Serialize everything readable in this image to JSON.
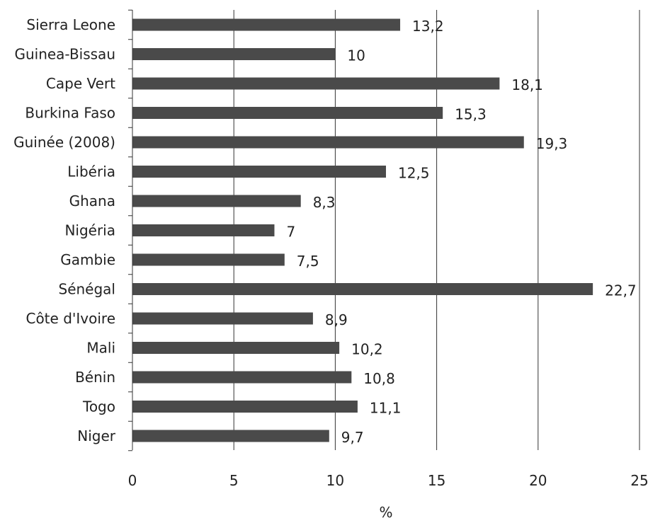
{
  "chart_data": {
    "type": "bar",
    "orientation": "horizontal",
    "categories": [
      "Sierra Leone",
      "Guinea-Bissau",
      "Cape Vert",
      "Burkina Faso",
      "Guinée (2008)",
      "Libéria",
      "Ghana",
      "Nigéria",
      "Gambie",
      "Sénégal",
      "Côte d'Ivoire",
      "Mali",
      "Bénin",
      "Togo",
      "Niger"
    ],
    "values": [
      13.2,
      10,
      18.1,
      15.3,
      19.3,
      12.5,
      8.3,
      7,
      7.5,
      22.7,
      8.9,
      10.2,
      10.8,
      11.1,
      9.7
    ],
    "value_labels": [
      "13,2",
      "10",
      "18,1",
      "15,3",
      "19,3",
      "12,5",
      "8,3",
      "7",
      "7,5",
      "22,7",
      "8,9",
      "10,2",
      "10,8",
      "11,1",
      "9,7"
    ],
    "xlabel": "%",
    "xlim": [
      0,
      25
    ],
    "xticks": [
      0,
      5,
      10,
      15,
      20,
      25
    ],
    "xtick_labels": [
      "0",
      "5",
      "10",
      "15",
      "20",
      "25"
    ],
    "grid": "vertical",
    "bar_color": "#4a4a4a",
    "grid_color": "#333333"
  }
}
